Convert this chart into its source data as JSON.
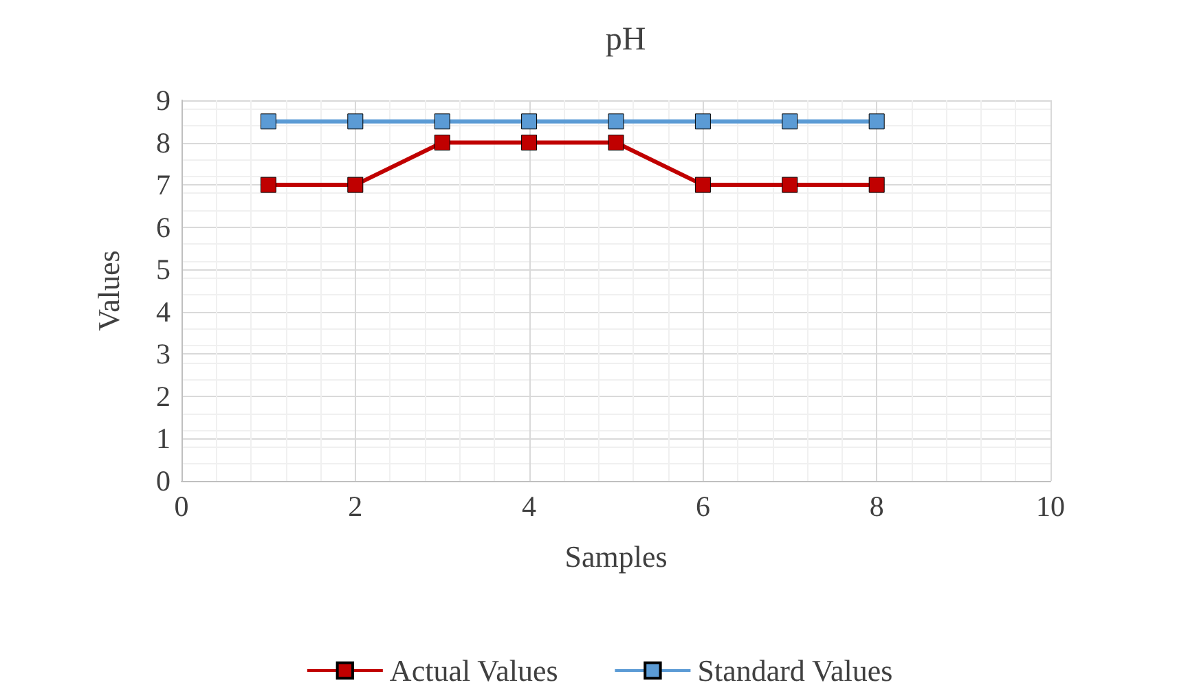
{
  "chart_data": {
    "type": "line",
    "title": "pH",
    "xlabel": "Samples",
    "ylabel": "Values",
    "x": [
      1,
      2,
      3,
      4,
      5,
      6,
      7,
      8
    ],
    "series": [
      {
        "name": "Actual Values",
        "color": "#c00000",
        "values": [
          7,
          7,
          8,
          8,
          8,
          7,
          7,
          7
        ]
      },
      {
        "name": "Standard Values",
        "color": "#5b9bd5",
        "values": [
          8.5,
          8.5,
          8.5,
          8.5,
          8.5,
          8.5,
          8.5,
          8.5
        ]
      }
    ],
    "xlim": [
      0,
      10
    ],
    "xticks": [
      0,
      2,
      4,
      6,
      8,
      10
    ],
    "ylim": [
      0,
      9
    ],
    "yticks": [
      0,
      1,
      2,
      3,
      4,
      5,
      6,
      7,
      8,
      9
    ],
    "grid": true,
    "legend": "bottom",
    "marker": "square",
    "line_style": "solid"
  }
}
